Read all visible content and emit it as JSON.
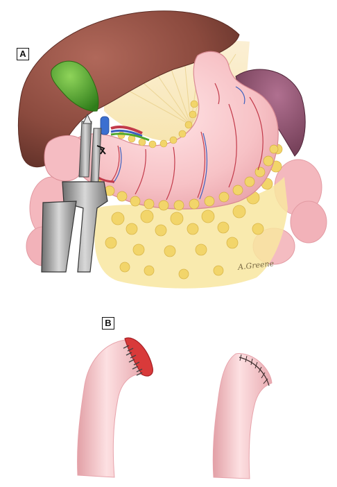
{
  "figure": {
    "panel_a": {
      "label": "A"
    },
    "panel_b": {
      "label": "B"
    },
    "signature": "A.Greene"
  },
  "colors": {
    "liver": "#8b4a3e",
    "gallbladder": "#4fa62c",
    "stomach": "#f7c2c6",
    "omentum": "#f2d56a",
    "spleen": "#8e4f6a",
    "instrument": "#9a9a9a",
    "vessel_red": "#c23a4a",
    "vessel_blue": "#3b5fbf"
  }
}
